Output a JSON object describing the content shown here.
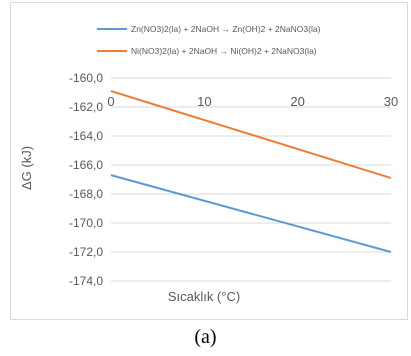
{
  "caption": "(a)",
  "chart_data": {
    "type": "line",
    "xlabel": "Sıcaklık (°C)",
    "ylabel": "ΔG (kJ)",
    "xlim": [
      0,
      30
    ],
    "ylim": [
      -174,
      -160
    ],
    "xticks": [
      0,
      10,
      20,
      30
    ],
    "xtick_labels": [
      "0",
      "10",
      "20",
      "30"
    ],
    "yticks": [
      -160,
      -162,
      -164,
      -166,
      -168,
      -170,
      -172,
      -174
    ],
    "ytick_labels": [
      "-160,0",
      "-162,0",
      "-164,0",
      "-166,0",
      "-168,0",
      "-170,0",
      "-172,0",
      "-174,0"
    ],
    "grid": "horizontal",
    "legend_position": "top",
    "series": [
      {
        "name": "Zn(NO3)2(la)  + 2NaOH  → Zn(OH)2 + 2NaNO3(la)",
        "color": "#5b9bd5",
        "x": [
          0,
          30
        ],
        "y": [
          -166.7,
          -172.0
        ]
      },
      {
        "name": "Ni(NO3)2(la)  + 2NaOH  → Ni(OH)2 + 2NaNO3(la)",
        "color": "#ed7d31",
        "x": [
          0,
          30
        ],
        "y": [
          -160.9,
          -166.9
        ]
      }
    ]
  }
}
